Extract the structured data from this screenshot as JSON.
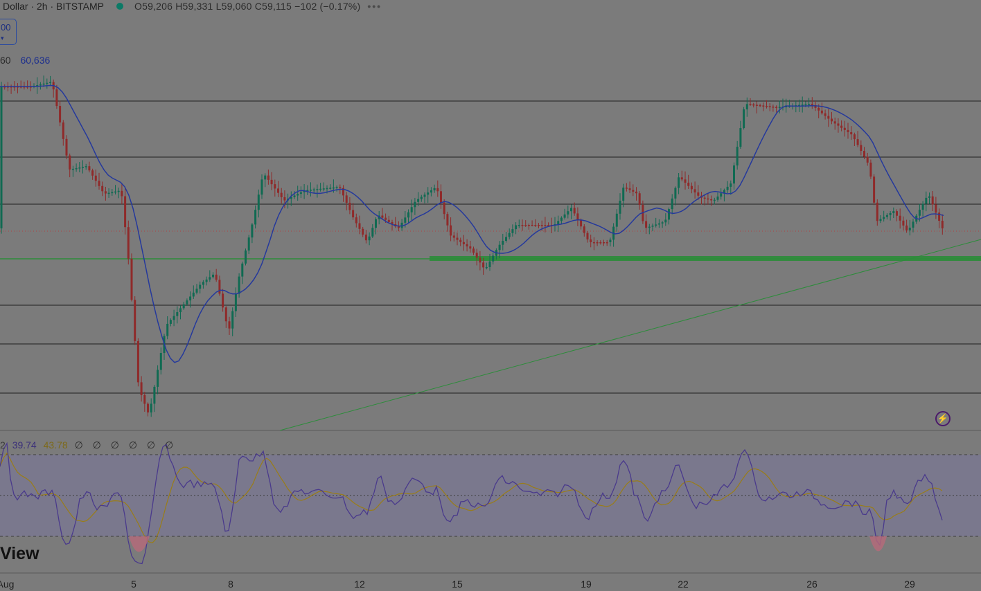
{
  "header": {
    "symbol": "Dollar · 2h · BITSTAMP",
    "ohlc": "O59,206 H59,331 L59,060 C59,115 −102 (−0.17%)",
    "more": "•••"
  },
  "badge": {
    "value": "00",
    "sub": "▾"
  },
  "ma_row": {
    "left_value": "60",
    "ma_value": "60,636"
  },
  "rsi_row": {
    "prefix": "2",
    "rsi": "39.74",
    "rsi_ma": "43.78",
    "zeros": "∅ ∅ ∅ ∅ ∅ ∅"
  },
  "logo": "View",
  "x_axis": [
    "Aug",
    "5",
    "8",
    "12",
    "15",
    "19",
    "22",
    "26",
    "29"
  ],
  "colors": {
    "up": "#106a52",
    "down": "#8f2a2a",
    "ma": "#25399c",
    "rsi": "#4a3a8c",
    "rsi_ma": "#9a7d16",
    "support": "#2c8c3a"
  },
  "chart_data": {
    "type": "candlestick",
    "x_labels": [
      "Aug",
      "5",
      "8",
      "12",
      "15",
      "19",
      "22",
      "26",
      "29"
    ],
    "ohlc_last": {
      "open": 59206,
      "high": 59331,
      "low": 59060,
      "close": 59115,
      "change": -102,
      "change_pct": -0.17
    },
    "indicators": {
      "ma": 60636,
      "rsi": 39.74,
      "rsi_ma": 43.78
    }
  }
}
